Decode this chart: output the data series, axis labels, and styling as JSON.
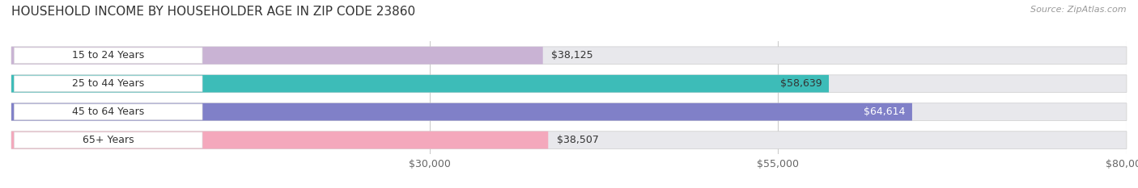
{
  "title": "HOUSEHOLD INCOME BY HOUSEHOLDER AGE IN ZIP CODE 23860",
  "source": "Source: ZipAtlas.com",
  "categories": [
    "15 to 24 Years",
    "25 to 44 Years",
    "45 to 64 Years",
    "65+ Years"
  ],
  "values": [
    38125,
    58639,
    64614,
    38507
  ],
  "bar_colors": [
    "#c9b3d4",
    "#3dbcb8",
    "#8080c8",
    "#f4a8bc"
  ],
  "bar_label_colors": [
    "#333333",
    "#333333",
    "#ffffff",
    "#333333"
  ],
  "xlim_max": 80000,
  "xticks": [
    30000,
    55000,
    80000
  ],
  "xtick_labels": [
    "$30,000",
    "$55,000",
    "$80,000"
  ],
  "background_color": "#ffffff",
  "bar_bg_color": "#e8e8ec",
  "title_fontsize": 11,
  "source_fontsize": 8,
  "label_fontsize": 9,
  "tick_fontsize": 9,
  "value_label_inside_threshold": 55000
}
